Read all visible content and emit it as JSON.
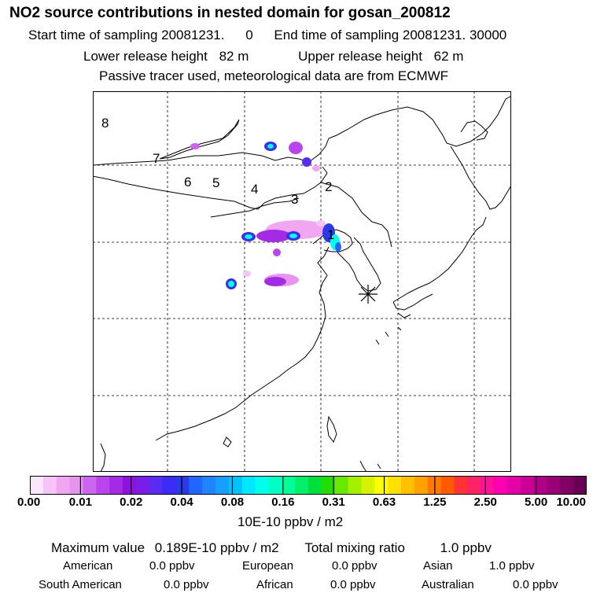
{
  "header": {
    "title": "NO2 source contributions in nested domain for gosan_200812",
    "start_label": "Start time of sampling 20081231.",
    "start_value": "0",
    "end_label": "End time of sampling 20081231. 30000",
    "lower_label": "Lower release height",
    "lower_value": "82 m",
    "upper_label": "Upper release height",
    "upper_value": "62 m",
    "tracer_line": "Passive tracer used, meteorological data are from ECMWF"
  },
  "map": {
    "region_labels": [
      {
        "text": "8"
      },
      {
        "text": "7"
      },
      {
        "text": "6"
      },
      {
        "text": "5"
      },
      {
        "text": "4"
      },
      {
        "text": "3"
      },
      {
        "text": "2"
      },
      {
        "text": "1"
      }
    ],
    "receptor_marker_icon": "asterisk-icon"
  },
  "colorbar": {
    "colors": [
      "#fbe6fb",
      "#f6c4f6",
      "#f0a6f0",
      "#e893ef",
      "#cc66ee",
      "#bb44ee",
      "#a52ae6",
      "#9010e0",
      "#7a1de6",
      "#5a2bf0",
      "#3b2cf8",
      "#2a3ae6",
      "#2266ff",
      "#1f84ff",
      "#169fff",
      "#00c2ff",
      "#00e8ff",
      "#00ffea",
      "#00ffc6",
      "#00ff99",
      "#00f06a",
      "#00e03c",
      "#22dd00",
      "#66e800",
      "#a2ef00",
      "#d5f200",
      "#ffff00",
      "#ffe000",
      "#ffc000",
      "#ffa200",
      "#ff7a00",
      "#ff5a00",
      "#ff3333",
      "#ff2266",
      "#ff1199",
      "#ff00b0",
      "#e600aa",
      "#cc0099",
      "#b00088",
      "#990077",
      "#800066",
      "#660055"
    ],
    "tick_labels": [
      "0.00",
      "0.01",
      "0.02",
      "0.04",
      "0.08",
      "0.16",
      "0.31",
      "0.63",
      "1.25",
      "2.50",
      "5.00",
      "10.00"
    ],
    "units": "10E-10 ppbv / m2"
  },
  "summary": {
    "max_label": "Maximum value",
    "max_value": "0.189E-10 ppbv / m2",
    "total_label": "Total mixing ratio",
    "total_value": "1.0 ppbv",
    "rows": [
      [
        {
          "name": "American",
          "value": "0.0 ppbv"
        },
        {
          "name": "European",
          "value": "0.0 ppbv"
        },
        {
          "name": "Asian",
          "value": "1.0 ppbv"
        }
      ],
      [
        {
          "name": "South American",
          "value": "0.0 ppbv"
        },
        {
          "name": "African",
          "value": "0.0 ppbv"
        },
        {
          "name": "Australian",
          "value": "0.0 ppbv"
        }
      ]
    ]
  }
}
